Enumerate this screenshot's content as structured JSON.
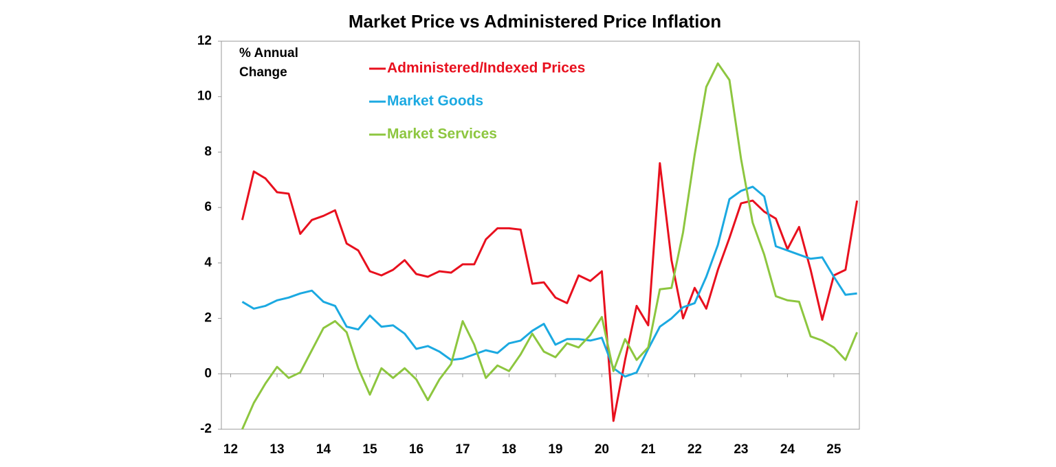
{
  "chart_data": {
    "type": "line",
    "title": "Market Price vs Administered Price Inflation",
    "y_label": [
      "% Annual",
      "Change"
    ],
    "x": [
      12.25,
      12.5,
      12.75,
      13,
      13.25,
      13.5,
      13.75,
      14,
      14.25,
      14.5,
      14.75,
      15,
      15.25,
      15.5,
      15.75,
      16,
      16.25,
      16.5,
      16.75,
      17,
      17.25,
      17.5,
      17.75,
      18,
      18.25,
      18.5,
      18.75,
      19,
      19.25,
      19.5,
      19.75,
      20,
      20.25,
      20.5,
      20.75,
      21,
      21.25,
      21.5,
      21.75,
      22,
      22.25,
      22.5,
      22.75,
      23,
      23.25,
      23.5,
      23.75,
      24,
      24.25,
      24.5,
      24.75,
      25,
      25.25,
      25.5
    ],
    "series": [
      {
        "name": "Administered/Indexed Prices",
        "color": "#e8101e",
        "values": [
          5.55,
          7.3,
          7.05,
          6.55,
          6.5,
          5.05,
          5.55,
          5.7,
          5.9,
          4.7,
          4.45,
          3.7,
          3.55,
          3.75,
          4.1,
          3.6,
          3.5,
          3.7,
          3.65,
          3.95,
          3.95,
          4.85,
          5.25,
          5.25,
          5.2,
          3.25,
          3.3,
          2.75,
          2.55,
          3.55,
          3.35,
          3.7,
          -1.7,
          0.5,
          2.45,
          1.75,
          7.6,
          4.1,
          2.0,
          3.1,
          2.35,
          3.75,
          4.9,
          6.15,
          6.25,
          5.85,
          5.6,
          4.5,
          5.3,
          3.75,
          1.95,
          3.55,
          3.75,
          6.25
        ]
      },
      {
        "name": "Market Goods",
        "color": "#1ba9e1",
        "values": [
          2.6,
          2.35,
          2.45,
          2.65,
          2.75,
          2.9,
          3.0,
          2.6,
          2.45,
          1.7,
          1.6,
          2.1,
          1.7,
          1.75,
          1.45,
          0.9,
          1.0,
          0.8,
          0.5,
          0.55,
          0.7,
          0.85,
          0.75,
          1.1,
          1.2,
          1.55,
          1.8,
          1.05,
          1.25,
          1.25,
          1.2,
          1.3,
          0.2,
          -0.1,
          0.05,
          0.9,
          1.7,
          2.0,
          2.4,
          2.55,
          3.5,
          4.65,
          6.3,
          6.6,
          6.75,
          6.4,
          4.6,
          4.45,
          4.3,
          4.15,
          4.2,
          3.5,
          2.85,
          2.9
        ]
      },
      {
        "name": "Market Services",
        "color": "#8dc63f",
        "values": [
          -2.0,
          -1.05,
          -0.35,
          0.25,
          -0.15,
          0.05,
          0.85,
          1.65,
          1.9,
          1.5,
          0.2,
          -0.75,
          0.2,
          -0.15,
          0.2,
          -0.2,
          -0.95,
          -0.2,
          0.35,
          1.9,
          1.05,
          -0.15,
          0.3,
          0.1,
          0.7,
          1.45,
          0.8,
          0.6,
          1.1,
          0.95,
          1.4,
          2.05,
          0.1,
          1.25,
          0.5,
          0.95,
          3.05,
          3.1,
          5.1,
          7.9,
          10.35,
          11.2,
          10.6,
          7.75,
          5.45,
          4.3,
          2.8,
          2.65,
          2.6,
          1.35,
          1.2,
          0.95,
          0.5,
          1.5
        ]
      }
    ],
    "xlim": [
      11.8,
      25.55
    ],
    "xticks": [
      12,
      13,
      14,
      15,
      16,
      17,
      18,
      19,
      20,
      21,
      22,
      23,
      24,
      25
    ],
    "ylim": [
      -2,
      12
    ],
    "yticks": [
      -2,
      0,
      2,
      4,
      6,
      8,
      10,
      12
    ],
    "grid": false
  }
}
